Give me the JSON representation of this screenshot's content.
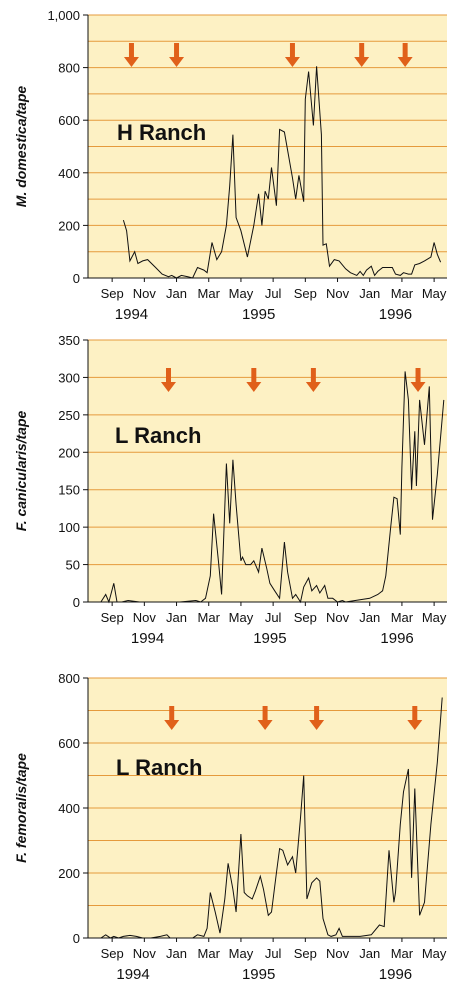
{
  "chart_data": [
    {
      "type": "line",
      "ylabel": "M. domestica/tape",
      "annotation": "H Ranch",
      "ylim": [
        0,
        1000
      ],
      "yticks": [
        0,
        200,
        400,
        600,
        800,
        {
          "value": 1000,
          "label": "1,000"
        }
      ],
      "grid_lines": [
        100,
        200,
        300,
        400,
        500,
        600,
        700,
        800,
        900
      ],
      "xlim": [
        -1.5,
        20.8
      ],
      "xticks": [
        {
          "value": 0,
          "label": "Sep"
        },
        {
          "value": 2,
          "label": "Nov"
        },
        {
          "value": 4,
          "label": "Jan"
        },
        {
          "value": 6,
          "label": "Mar"
        },
        {
          "value": 8,
          "label": "May"
        },
        {
          "value": 10,
          "label": "Jul"
        },
        {
          "value": 12,
          "label": "Sep"
        },
        {
          "value": 14,
          "label": "Nov"
        },
        {
          "value": 16,
          "label": "Jan"
        },
        {
          "value": 18,
          "label": "Mar"
        },
        {
          "value": 20,
          "label": "May"
        }
      ],
      "year_labels": [
        {
          "value": 1.2,
          "label": "1994"
        },
        {
          "value": 9.1,
          "label": "1995"
        },
        {
          "value": 17.6,
          "label": "1996"
        }
      ],
      "arrows": [
        1.2,
        4.0,
        11.2,
        15.5,
        18.2
      ],
      "arrow_color": "#e0601a",
      "background": "#fdf1c4",
      "grid_color": "#e59a3c",
      "color": "#111111",
      "x": [
        0.7,
        0.9,
        1.1,
        1.4,
        1.6,
        1.9,
        2.2,
        2.7,
        3.1,
        3.5,
        3.7,
        4.0,
        4.3,
        4.7,
        5.0,
        5.3,
        5.7,
        5.9,
        6.2,
        6.5,
        6.8,
        7.1,
        7.3,
        7.5,
        7.7,
        8.0,
        8.4,
        8.8,
        9.1,
        9.3,
        9.5,
        9.7,
        9.9,
        10.2,
        10.4,
        10.7,
        11.2,
        11.4,
        11.6,
        11.9,
        12.0,
        12.2,
        12.5,
        12.7,
        13.0,
        13.1,
        13.3,
        13.5,
        13.8,
        14.1,
        14.5,
        14.8,
        15.2,
        15.4,
        15.6,
        15.8,
        16.1,
        16.3,
        16.5,
        16.8,
        17.1,
        17.4,
        17.6,
        17.9,
        18.1,
        18.4,
        18.6,
        18.8,
        19.1,
        19.4,
        19.8,
        20.0,
        20.2,
        20.4
      ],
      "values": [
        220,
        180,
        65,
        100,
        55,
        65,
        70,
        40,
        15,
        5,
        10,
        0,
        10,
        5,
        0,
        40,
        30,
        20,
        135,
        70,
        100,
        200,
        350,
        545,
        230,
        180,
        80,
        200,
        320,
        200,
        330,
        300,
        420,
        275,
        565,
        555,
        380,
        300,
        390,
        290,
        680,
        785,
        580,
        805,
        545,
        125,
        130,
        45,
        70,
        65,
        35,
        20,
        10,
        25,
        10,
        30,
        45,
        10,
        25,
        40,
        40,
        40,
        15,
        10,
        20,
        15,
        15,
        50,
        55,
        65,
        80,
        135,
        90,
        60
      ]
    },
    {
      "type": "line",
      "ylabel": "F. canicularis/tape",
      "annotation": "L Ranch",
      "ylim": [
        0,
        350
      ],
      "yticks": [
        0,
        50,
        100,
        150,
        200,
        250,
        300,
        350
      ],
      "grid_lines": [
        50,
        100,
        150,
        200,
        250,
        300
      ],
      "xlim": [
        -1.5,
        20.8
      ],
      "xticks": [
        {
          "value": 0,
          "label": "Sep"
        },
        {
          "value": 2,
          "label": "Nov"
        },
        {
          "value": 4,
          "label": "Jan"
        },
        {
          "value": 6,
          "label": "Mar"
        },
        {
          "value": 8,
          "label": "May"
        },
        {
          "value": 10,
          "label": "Jul"
        },
        {
          "value": 12,
          "label": "Sep"
        },
        {
          "value": 14,
          "label": "Nov"
        },
        {
          "value": 16,
          "label": "Jan"
        },
        {
          "value": 18,
          "label": "Mar"
        },
        {
          "value": 20,
          "label": "May"
        }
      ],
      "year_labels": [
        {
          "value": 2.2,
          "label": "1994"
        },
        {
          "value": 9.8,
          "label": "1995"
        },
        {
          "value": 17.7,
          "label": "1996"
        }
      ],
      "arrows": [
        3.5,
        8.8,
        12.5,
        19.0
      ],
      "arrow_color": "#e0601a",
      "background": "#fdf1c4",
      "grid_color": "#e59a3c",
      "color": "#111111",
      "x": [
        -0.7,
        -0.4,
        -0.2,
        0.1,
        0.3,
        0.6,
        1.0,
        1.7,
        3.0,
        4.2,
        5.2,
        5.5,
        5.8,
        6.1,
        6.3,
        6.6,
        6.8,
        7.1,
        7.3,
        7.5,
        7.7,
        8.0,
        8.1,
        8.3,
        8.6,
        8.8,
        9.1,
        9.3,
        9.6,
        9.8,
        10.1,
        10.4,
        10.7,
        10.9,
        11.2,
        11.4,
        11.7,
        11.9,
        12.2,
        12.4,
        12.7,
        12.9,
        13.2,
        13.4,
        13.7,
        14.0,
        14.3,
        14.5,
        15.1,
        16.0,
        16.5,
        16.8,
        17.0,
        17.3,
        17.5,
        17.7,
        17.9,
        18.0,
        18.2,
        18.4,
        18.6,
        18.8,
        18.9,
        19.1,
        19.4,
        19.7,
        19.9,
        20.2,
        20.6
      ],
      "values": [
        0,
        10,
        0,
        25,
        0,
        0,
        2,
        0,
        0,
        0,
        2,
        0,
        5,
        35,
        118,
        55,
        10,
        185,
        105,
        190,
        130,
        55,
        60,
        50,
        50,
        55,
        40,
        72,
        45,
        25,
        15,
        5,
        80,
        40,
        5,
        10,
        0,
        20,
        32,
        15,
        22,
        12,
        22,
        5,
        5,
        0,
        2,
        0,
        2,
        5,
        10,
        15,
        35,
        100,
        140,
        138,
        90,
        180,
        308,
        270,
        150,
        228,
        155,
        270,
        210,
        288,
        110,
        170,
        270
      ]
    },
    {
      "type": "line",
      "ylabel": "F. femoralis/tape",
      "annotation": "L Ranch",
      "ylim": [
        0,
        800
      ],
      "yticks": [
        0,
        200,
        400,
        600,
        800
      ],
      "grid_lines": [
        100,
        200,
        300,
        400,
        500,
        600,
        700
      ],
      "xlim": [
        -1.5,
        20.8
      ],
      "xticks": [
        {
          "value": 0,
          "label": "Sep"
        },
        {
          "value": 2,
          "label": "Nov"
        },
        {
          "value": 4,
          "label": "Jan"
        },
        {
          "value": 6,
          "label": "Mar"
        },
        {
          "value": 8,
          "label": "May"
        },
        {
          "value": 10,
          "label": "Jul"
        },
        {
          "value": 12,
          "label": "Sep"
        },
        {
          "value": 14,
          "label": "Nov"
        },
        {
          "value": 16,
          "label": "Jan"
        },
        {
          "value": 18,
          "label": "Mar"
        },
        {
          "value": 20,
          "label": "May"
        }
      ],
      "year_labels": [
        {
          "value": 1.3,
          "label": "1994"
        },
        {
          "value": 9.1,
          "label": "1995"
        },
        {
          "value": 17.6,
          "label": "1996"
        }
      ],
      "arrows": [
        3.7,
        9.5,
        12.7,
        18.8
      ],
      "arrow_color": "#e0601a",
      "background": "#fdf1c4",
      "grid_color": "#e59a3c",
      "color": "#111111",
      "x": [
        -0.7,
        -0.4,
        -0.1,
        0.1,
        0.4,
        0.7,
        1.1,
        1.5,
        1.9,
        2.4,
        3.0,
        3.4,
        3.6,
        4.2,
        5.0,
        5.3,
        5.7,
        5.9,
        6.1,
        6.4,
        6.7,
        7.0,
        7.2,
        7.5,
        7.7,
        8.0,
        8.2,
        8.4,
        8.7,
        8.9,
        9.2,
        9.4,
        9.7,
        9.9,
        10.2,
        10.4,
        10.6,
        10.9,
        11.2,
        11.4,
        11.7,
        11.9,
        12.1,
        12.4,
        12.7,
        12.9,
        13.1,
        13.4,
        13.6,
        13.9,
        14.1,
        14.3,
        15.4,
        16.1,
        16.6,
        16.9,
        17.2,
        17.5,
        17.6,
        17.9,
        18.1,
        18.4,
        18.6,
        18.8,
        19.1,
        19.4,
        19.8,
        20.2,
        20.5
      ],
      "values": [
        0,
        10,
        0,
        5,
        0,
        5,
        8,
        5,
        0,
        0,
        5,
        10,
        0,
        0,
        0,
        10,
        5,
        30,
        140,
        80,
        15,
        120,
        230,
        150,
        80,
        320,
        140,
        130,
        120,
        145,
        190,
        150,
        70,
        80,
        200,
        275,
        270,
        225,
        250,
        200,
        370,
        500,
        120,
        170,
        185,
        175,
        60,
        10,
        5,
        10,
        30,
        5,
        5,
        10,
        40,
        35,
        270,
        110,
        140,
        350,
        450,
        520,
        185,
        460,
        70,
        110,
        350,
        540,
        740
      ]
    }
  ]
}
